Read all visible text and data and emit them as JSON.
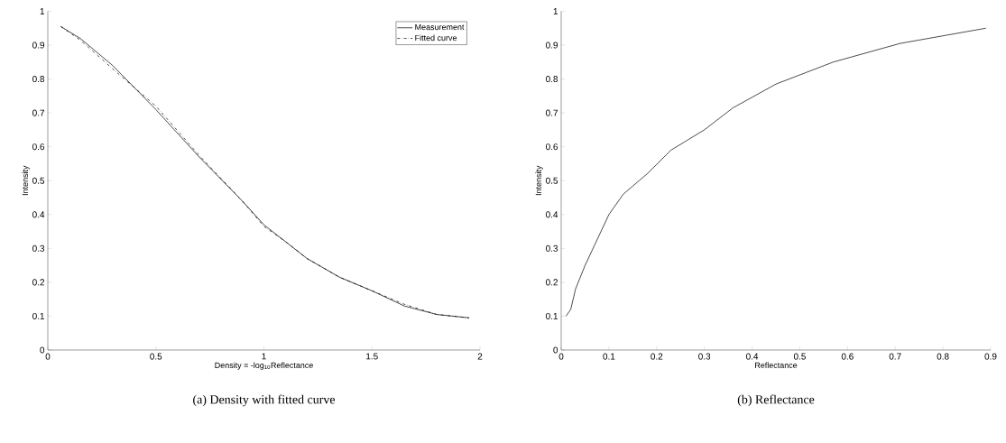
{
  "chart_data": [
    {
      "type": "line",
      "title": "(a) Density with fitted curve",
      "xlabel": "Density = -log$_{10}$Reflectance",
      "ylabel": "Intensity",
      "xlim": [
        0,
        2
      ],
      "ylim": [
        0,
        1
      ],
      "xticks": [
        0,
        0.5,
        1,
        1.5,
        2
      ],
      "yticks": [
        0,
        0.1,
        0.2,
        0.3,
        0.4,
        0.5,
        0.6,
        0.7,
        0.8,
        0.9,
        1
      ],
      "legend": "top right",
      "series": [
        {
          "name": "Measurement",
          "color": "#000000",
          "line_style": "solid",
          "x": [
            0.06,
            0.15,
            0.3,
            0.5,
            0.7,
            0.9,
            1.0,
            1.1,
            1.2,
            1.35,
            1.5,
            1.65,
            1.8,
            1.95
          ],
          "values": [
            0.955,
            0.92,
            0.84,
            0.71,
            0.57,
            0.44,
            0.37,
            0.32,
            0.27,
            0.215,
            0.175,
            0.13,
            0.105,
            0.095
          ]
        },
        {
          "name": "Fitted curve",
          "color": "#000000",
          "line_style": "dashdot",
          "x": [
            0.06,
            0.15,
            0.3,
            0.5,
            0.7,
            0.9,
            1.0,
            1.1,
            1.2,
            1.35,
            1.5,
            1.65,
            1.8,
            1.95
          ],
          "values": [
            0.955,
            0.915,
            0.83,
            0.72,
            0.575,
            0.44,
            0.365,
            0.32,
            0.27,
            0.215,
            0.175,
            0.135,
            0.105,
            0.095
          ]
        }
      ]
    },
    {
      "type": "line",
      "title": "(b) Reflectance",
      "xlabel": "Reflectance",
      "ylabel": "Intensity",
      "xlim": [
        0,
        0.9
      ],
      "ylim": [
        0,
        1
      ],
      "xticks": [
        0,
        0.1,
        0.2,
        0.3,
        0.4,
        0.5,
        0.6,
        0.7,
        0.8,
        0.9
      ],
      "yticks": [
        0,
        0.1,
        0.2,
        0.3,
        0.4,
        0.5,
        0.6,
        0.7,
        0.8,
        0.9,
        1
      ],
      "series": [
        {
          "color": "#000000",
          "line_style": "solid",
          "x": [
            0.01,
            0.02,
            0.03,
            0.05,
            0.07,
            0.1,
            0.13,
            0.18,
            0.23,
            0.3,
            0.36,
            0.45,
            0.57,
            0.71,
            0.75,
            0.89
          ],
          "values": [
            0.1,
            0.12,
            0.18,
            0.25,
            0.31,
            0.4,
            0.46,
            0.52,
            0.59,
            0.65,
            0.715,
            0.785,
            0.85,
            0.905,
            0.915,
            0.95
          ]
        }
      ]
    }
  ]
}
